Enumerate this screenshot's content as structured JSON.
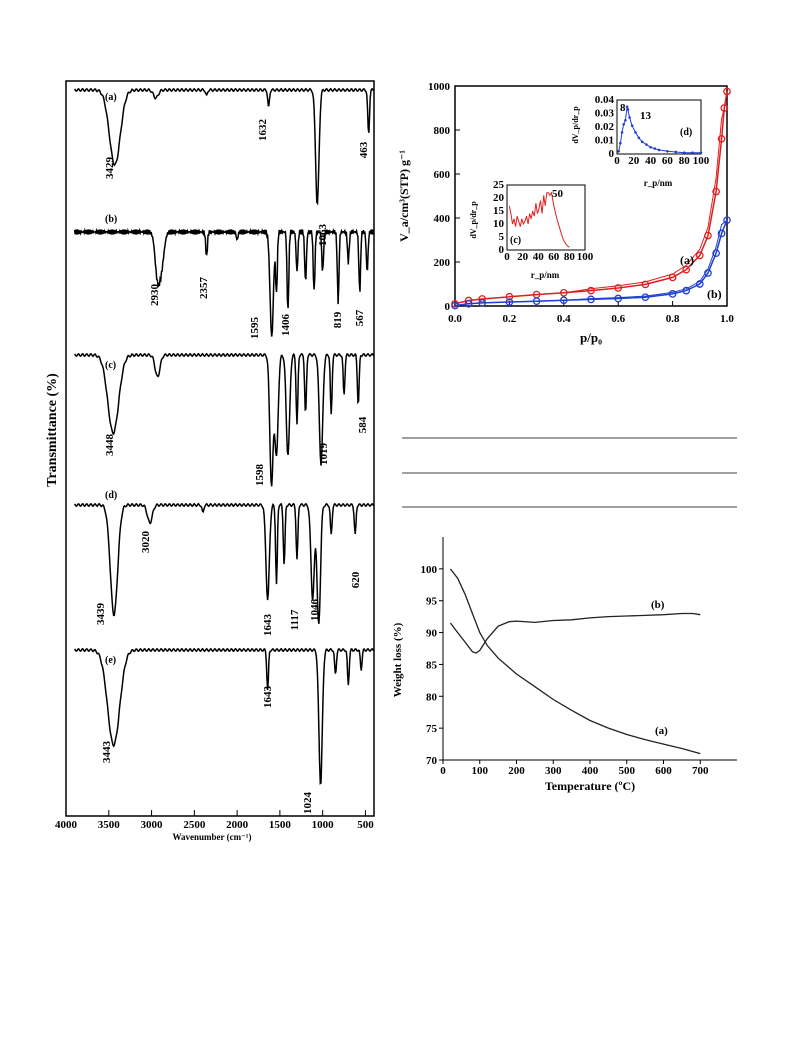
{
  "ftir": {
    "type": "line",
    "ylabel": "Transmittance (%)",
    "xlabel": "Wavenumber (cm⁻¹)",
    "xlim": [
      4000,
      400
    ],
    "xticks": [
      "4000",
      "3500",
      "3000",
      "2500",
      "2000",
      "1500",
      "1000",
      "500"
    ],
    "panels": [
      {
        "label": "(a)",
        "peaks": [
          "3429",
          "1632",
          "1063",
          "463"
        ]
      },
      {
        "label": "(b)",
        "peaks": [
          "2930",
          "2357",
          "1595",
          "1406",
          "819",
          "567"
        ]
      },
      {
        "label": "(c)",
        "peaks": [
          "3448",
          "1598",
          "1019",
          "584"
        ]
      },
      {
        "label": "(d)",
        "peaks": [
          "3439",
          "3020",
          "1643",
          "1117",
          "1046",
          "620"
        ]
      },
      {
        "label": "(e)",
        "peaks": [
          "3443",
          "1643",
          "1024"
        ]
      }
    ]
  },
  "bet": {
    "type": "line",
    "ylabel": "V_a/cm³(STP) g⁻¹",
    "xlabel": "p/p₀",
    "xlim": [
      0,
      1.0
    ],
    "ylim": [
      0,
      1000
    ],
    "xticks": [
      "0.0",
      "0.2",
      "0.4",
      "0.6",
      "0.8",
      "1.0"
    ],
    "yticks": [
      "0",
      "200",
      "400",
      "600",
      "800",
      "1000"
    ],
    "series": [
      {
        "name": "(a)",
        "color": "#e02020",
        "x": [
          0,
          0.05,
          0.1,
          0.2,
          0.3,
          0.4,
          0.5,
          0.6,
          0.7,
          0.8,
          0.85,
          0.9,
          0.93,
          0.96,
          0.98,
          0.99,
          1.0
        ],
        "y": [
          10,
          25,
          32,
          42,
          52,
          60,
          70,
          82,
          98,
          130,
          165,
          230,
          320,
          520,
          760,
          900,
          975
        ]
      },
      {
        "name": "(b)",
        "color": "#1f3fd0",
        "x": [
          0,
          0.05,
          0.1,
          0.2,
          0.3,
          0.4,
          0.5,
          0.6,
          0.7,
          0.8,
          0.85,
          0.9,
          0.93,
          0.96,
          0.98,
          1.0
        ],
        "y": [
          2,
          10,
          14,
          18,
          22,
          26,
          30,
          34,
          40,
          55,
          70,
          100,
          150,
          240,
          330,
          390
        ]
      }
    ],
    "insets": [
      {
        "label": "(c)",
        "ylabel": "dV_p/dr_p",
        "xlabel": "r_p/nm",
        "annotation": "50",
        "xticks": [
          "0",
          "20",
          "40",
          "60",
          "80",
          "100"
        ],
        "yticks": [
          "0",
          "5",
          "10",
          "15",
          "20",
          "25"
        ],
        "color": "#e02020",
        "x": [
          3,
          5,
          7,
          9,
          11,
          13,
          15,
          17,
          19,
          21,
          23,
          25,
          27,
          29,
          31,
          33,
          35,
          37,
          39,
          41,
          43,
          45,
          47,
          49,
          51,
          53,
          55,
          57,
          60,
          64,
          68,
          72,
          76,
          80
        ],
        "y": [
          17,
          14,
          10,
          12,
          9,
          13,
          11,
          9,
          12,
          10,
          11,
          13,
          10,
          14,
          12,
          15,
          13,
          18,
          14,
          16,
          19,
          14,
          21,
          17,
          22,
          22,
          21,
          22,
          17,
          12,
          8,
          4,
          2,
          1
        ]
      },
      {
        "label": "(d)",
        "ylabel": "dV_p/dr_p",
        "xlabel": "r_p/nm",
        "annotation_a": "8",
        "annotation_b": "13",
        "xticks": [
          "0",
          "20",
          "40",
          "60",
          "80",
          "100"
        ],
        "yticks": [
          "0",
          "0.01",
          "0.02",
          "0.03",
          "0.04"
        ],
        "color": "#1f3fd0",
        "x": [
          2,
          4,
          6,
          8,
          10,
          12,
          13,
          15,
          18,
          22,
          26,
          30,
          35,
          40,
          45,
          50,
          60,
          70,
          80,
          90,
          100
        ],
        "y": [
          0.002,
          0.008,
          0.016,
          0.022,
          0.025,
          0.035,
          0.033,
          0.027,
          0.021,
          0.016,
          0.012,
          0.009,
          0.007,
          0.005,
          0.004,
          0.003,
          0.002,
          0.0015,
          0.001,
          0.001,
          0.001
        ]
      }
    ]
  },
  "tga": {
    "type": "line",
    "ylabel": "Weight loss (%)",
    "xlabel": "Temperature (ºC)",
    "xlim": [
      0,
      800
    ],
    "ylim": [
      70,
      105
    ],
    "xticks": [
      "0",
      "100",
      "200",
      "300",
      "400",
      "500",
      "600",
      "700"
    ],
    "yticks": [
      "70",
      "75",
      "80",
      "85",
      "90",
      "95",
      "100"
    ],
    "series": [
      {
        "name": "(a)",
        "x": [
          20,
          40,
          60,
          80,
          100,
          120,
          150,
          200,
          250,
          300,
          350,
          400,
          450,
          500,
          550,
          600,
          650,
          700
        ],
        "y": [
          100,
          98.5,
          96,
          93,
          90,
          88,
          86,
          83.5,
          81.5,
          79.5,
          77.8,
          76.2,
          75,
          74,
          73.2,
          72.5,
          71.8,
          71
        ]
      },
      {
        "name": "(b)",
        "x": [
          20,
          40,
          60,
          80,
          90,
          100,
          120,
          150,
          180,
          200,
          250,
          300,
          350,
          400,
          450,
          500,
          550,
          600,
          650,
          680,
          700
        ],
        "y": [
          91.5,
          90,
          88.5,
          87,
          86.8,
          87.2,
          89,
          91,
          91.7,
          91.8,
          91.6,
          91.9,
          92,
          92.3,
          92.5,
          92.6,
          92.7,
          92.8,
          93,
          93,
          92.8
        ]
      }
    ]
  }
}
